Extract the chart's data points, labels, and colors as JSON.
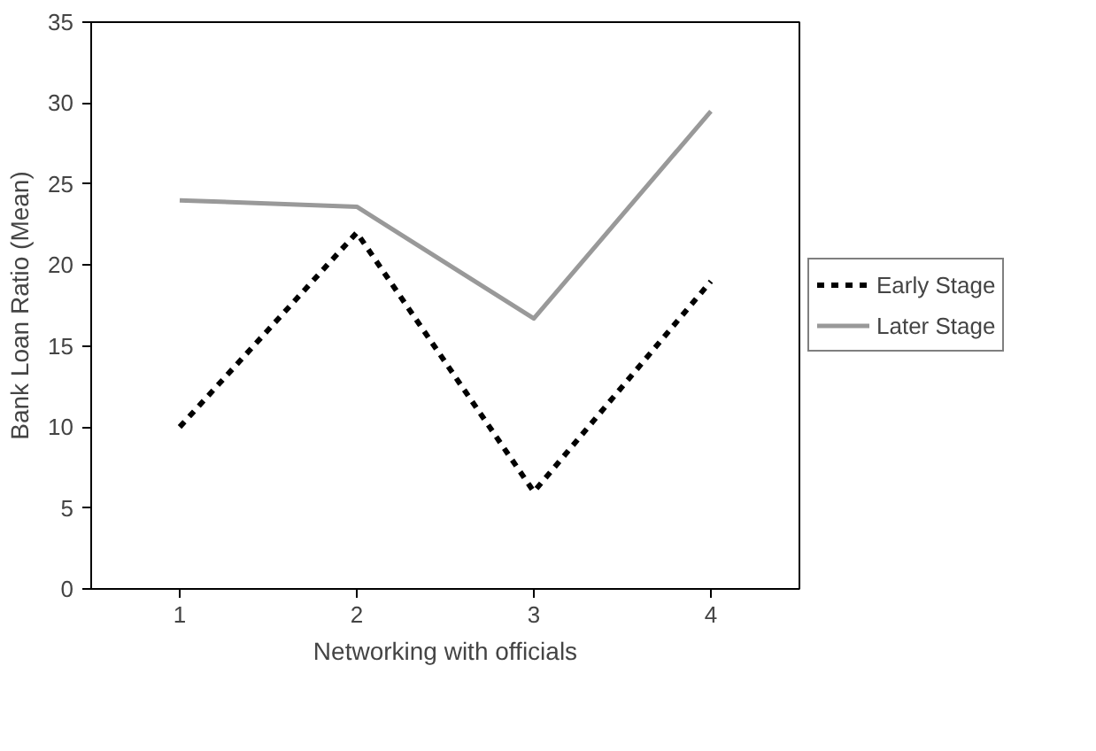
{
  "chart_data": {
    "type": "line",
    "xlabel": "Networking with officials",
    "ylabel": "Bank Loan Ratio (Mean)",
    "categories": [
      "1",
      "2",
      "3",
      "4"
    ],
    "series": [
      {
        "name": "Early Stage",
        "color": "#000000",
        "values": [
          10,
          22,
          6,
          19
        ],
        "line_style": "dashed"
      },
      {
        "name": "Later Stage",
        "color": "#999999",
        "values": [
          24,
          23.6,
          16.7,
          29.5
        ],
        "line_style": "solid"
      }
    ],
    "ylim": [
      0,
      35
    ],
    "yticks": [
      0,
      5,
      10,
      15,
      20,
      25,
      30,
      35
    ],
    "grid": false,
    "legend": "right",
    "marker": "none"
  }
}
